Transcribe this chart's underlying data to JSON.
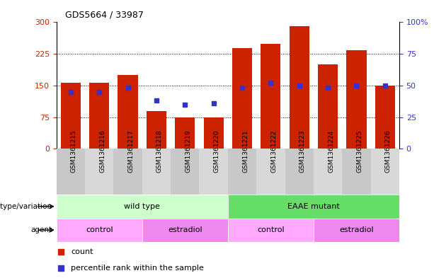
{
  "title": "GDS5664 / 33987",
  "samples": [
    "GSM1361215",
    "GSM1361216",
    "GSM1361217",
    "GSM1361218",
    "GSM1361219",
    "GSM1361220",
    "GSM1361221",
    "GSM1361222",
    "GSM1361223",
    "GSM1361224",
    "GSM1361225",
    "GSM1361226"
  ],
  "counts": [
    157,
    157,
    175,
    90,
    75,
    75,
    238,
    248,
    290,
    200,
    233,
    150
  ],
  "percentile_ranks": [
    45,
    45,
    48,
    38,
    35,
    36,
    48,
    52,
    50,
    48,
    50,
    50
  ],
  "bar_color": "#cc2200",
  "dot_color": "#3333cc",
  "left_axis_color": "#cc2200",
  "right_axis_color": "#3333cc",
  "ylim_left": [
    0,
    300
  ],
  "ylim_right": [
    0,
    100
  ],
  "yticks_left": [
    0,
    75,
    150,
    225,
    300
  ],
  "ytick_labels_left": [
    "0",
    "75",
    "150",
    "225",
    "300"
  ],
  "yticks_right": [
    0,
    25,
    50,
    75,
    100
  ],
  "ytick_labels_right": [
    "0",
    "25",
    "50",
    "75",
    "100%"
  ],
  "grid_lines": [
    75,
    150,
    225
  ],
  "genotype_groups": [
    {
      "label": "wild type",
      "start": 0,
      "end": 6,
      "color": "#ccffcc"
    },
    {
      "label": "EAAE mutant",
      "start": 6,
      "end": 12,
      "color": "#66dd66"
    }
  ],
  "agent_groups": [
    {
      "label": "control",
      "start": 0,
      "end": 3,
      "color": "#ffaaff"
    },
    {
      "label": "estradiol",
      "start": 3,
      "end": 6,
      "color": "#ee88ee"
    },
    {
      "label": "control",
      "start": 6,
      "end": 9,
      "color": "#ffaaff"
    },
    {
      "label": "estradiol",
      "start": 9,
      "end": 12,
      "color": "#ee88ee"
    }
  ],
  "legend_count_color": "#cc2200",
  "legend_dot_color": "#3333cc",
  "row_label_genotype": "genotype/variation",
  "row_label_agent": "agent",
  "xtick_bg_colors": [
    "#cccccc",
    "#dddddd",
    "#cccccc",
    "#dddddd",
    "#cccccc",
    "#dddddd",
    "#cccccc",
    "#dddddd",
    "#cccccc",
    "#dddddd",
    "#cccccc",
    "#dddddd"
  ]
}
